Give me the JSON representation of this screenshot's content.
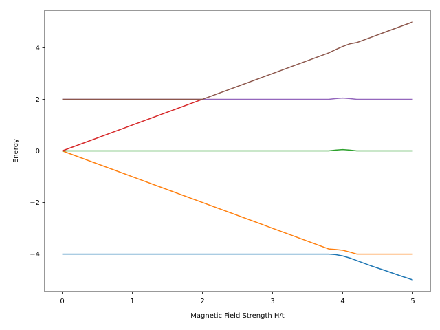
{
  "chart_data": {
    "type": "line",
    "title": "",
    "xlabel": "Magnetic Field Strength H/t",
    "ylabel": "Energy",
    "xlim": [
      -0.25,
      5.25
    ],
    "ylim": [
      -5.45,
      5.45
    ],
    "xticks": [
      0,
      1,
      2,
      3,
      4,
      5
    ],
    "yticks": [
      -4,
      -2,
      0,
      2,
      4
    ],
    "xtick_labels": [
      "0",
      "1",
      "2",
      "3",
      "4",
      "5"
    ],
    "ytick_labels": [
      "−4",
      "−2",
      "0",
      "2",
      "4"
    ],
    "grid": false,
    "legend": "none",
    "series": [
      {
        "color": "#1f77b4",
        "x": [
          0,
          1,
          2,
          3,
          3.8,
          3.9,
          4.0,
          4.1,
          4.2,
          4.4,
          4.6,
          4.8,
          5.0
        ],
        "y": [
          -4,
          -4,
          -4,
          -4,
          -4.0,
          -4.02,
          -4.07,
          -4.15,
          -4.25,
          -4.45,
          -4.63,
          -4.82,
          -5.0
        ]
      },
      {
        "color": "#ff7f0e",
        "x": [
          0,
          1,
          2,
          3,
          3.8,
          3.9,
          4.0,
          4.1,
          4.2,
          4.3,
          5.0
        ],
        "y": [
          0,
          -1,
          -2,
          -3,
          -3.8,
          -3.82,
          -3.85,
          -3.92,
          -4.0,
          -4.0,
          -4.0
        ]
      },
      {
        "color": "#2ca02c",
        "x": [
          0,
          1,
          2,
          3,
          3.8,
          3.9,
          4.0,
          4.1,
          4.2,
          5.0
        ],
        "y": [
          0,
          0,
          0,
          0,
          0,
          0.03,
          0.05,
          0.03,
          0,
          0
        ]
      },
      {
        "color": "#d62728",
        "x": [
          0,
          1,
          2
        ],
        "y": [
          0,
          1,
          2
        ]
      },
      {
        "color": "#9467bd",
        "x": [
          0,
          1,
          2,
          3,
          3.8,
          3.9,
          4.0,
          4.1,
          4.2,
          5.0
        ],
        "y": [
          2,
          2,
          2,
          2,
          2,
          2.03,
          2.05,
          2.03,
          2,
          2
        ]
      },
      {
        "color": "#8c564b",
        "x": [
          0,
          1,
          2,
          3,
          3.8,
          3.9,
          4.0,
          4.1,
          4.2,
          4.4,
          4.6,
          4.8,
          5.0
        ],
        "y": [
          2,
          2,
          2,
          3,
          3.8,
          3.93,
          4.05,
          4.15,
          4.2,
          4.4,
          4.6,
          4.8,
          5.0
        ]
      }
    ]
  }
}
